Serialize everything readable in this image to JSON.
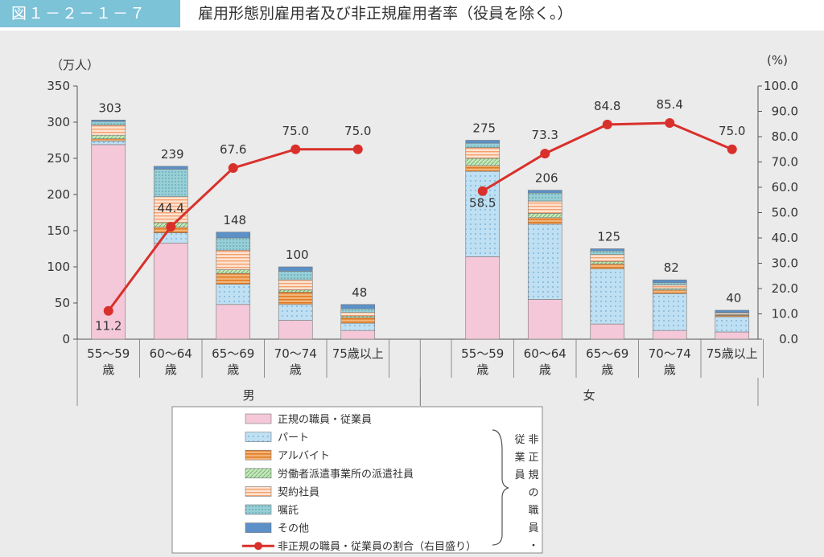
{
  "header": {
    "figure_label": "図１－２－１－７",
    "title": "雇用形態別雇用者及び非正規雇用者率（役員を除く。）"
  },
  "chart_data": {
    "type": "bar",
    "stacked": true,
    "y_left_unit": "（万人）",
    "y_right_unit": "(%)",
    "ylim": [
      0,
      350
    ],
    "y_ticks": [
      0,
      50,
      100,
      150,
      200,
      250,
      300,
      350
    ],
    "y2lim": [
      0,
      100
    ],
    "y2_ticks": [
      "0.0",
      "10.0",
      "20.0",
      "30.0",
      "40.0",
      "50.0",
      "60.0",
      "70.0",
      "80.0",
      "90.0",
      "100.0"
    ],
    "groups": [
      {
        "name": "男",
        "categories": [
          [
            "55～59",
            "歳"
          ],
          [
            "60～64",
            "歳"
          ],
          [
            "65～69",
            "歳"
          ],
          [
            "70～74",
            "歳"
          ],
          [
            "75歳以上",
            ""
          ]
        ]
      },
      {
        "name": "女",
        "categories": [
          [
            "55～59",
            "歳"
          ],
          [
            "60～64",
            "歳"
          ],
          [
            "65～69",
            "歳"
          ],
          [
            "70～74",
            "歳"
          ],
          [
            "75歳以上",
            ""
          ]
        ]
      }
    ],
    "series": [
      {
        "name": "正規の職員・従業員",
        "color": "#f4c8d8",
        "pattern": "solid",
        "values": [
          269,
          133,
          48,
          26,
          12,
          114,
          55,
          21,
          12,
          10
        ]
      },
      {
        "name": "パート",
        "color": "#bfe0f3",
        "pattern": "dots",
        "values": [
          5,
          14,
          28,
          22,
          10,
          118,
          104,
          76,
          51,
          21
        ]
      },
      {
        "name": "アルバイト",
        "color": "#f0a050",
        "pattern": "hstripe",
        "values": [
          3,
          8,
          15,
          17,
          8,
          8,
          9,
          7,
          5,
          2
        ]
      },
      {
        "name": "労働者派遣事業所の派遣社員",
        "color": "#a8d8a0",
        "pattern": "diag",
        "values": [
          5,
          6,
          5,
          3,
          2,
          10,
          6,
          3,
          2,
          1
        ]
      },
      {
        "name": "契約社員",
        "color": "#f9c8a8",
        "pattern": "hstripe-light",
        "values": [
          14,
          36,
          27,
          14,
          5,
          15,
          17,
          10,
          5,
          2
        ]
      },
      {
        "name": "嘱託",
        "color": "#98cfd6",
        "pattern": "dots-dense",
        "values": [
          5,
          38,
          17,
          12,
          5,
          6,
          11,
          5,
          3,
          1
        ]
      },
      {
        "name": "その他",
        "color": "#5b90c8",
        "pattern": "solid",
        "values": [
          2,
          4,
          8,
          6,
          6,
          4,
          4,
          3,
          4,
          3
        ]
      }
    ],
    "totals": [
      303,
      239,
      148,
      100,
      48,
      275,
      206,
      125,
      82,
      40
    ],
    "line_series": {
      "name": "非正規の職員・従業員の割合（右目盛り）",
      "color": "#d9302b",
      "values": [
        11.2,
        44.4,
        67.6,
        75.0,
        75.0,
        58.5,
        73.3,
        84.8,
        85.4,
        75.0
      ],
      "labels": [
        "11.2",
        "44.4",
        "67.6",
        "75.0",
        "75.0",
        "58.5",
        "73.3",
        "84.8",
        "85.4",
        "75.0"
      ]
    },
    "legend_bracket_label": "非正規の職員・従業員"
  }
}
